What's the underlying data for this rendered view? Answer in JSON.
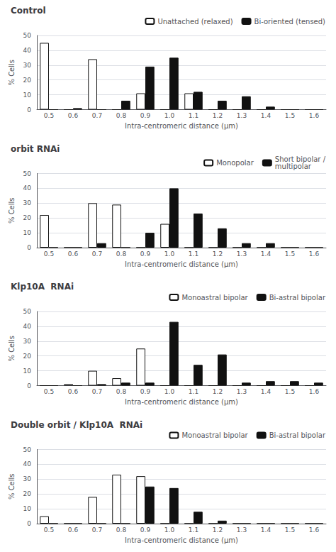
{
  "chart_data": [
    {
      "type": "bar",
      "title": "Control",
      "categories": [
        "0.5",
        "0.6",
        "0.7",
        "0.8",
        "0.9",
        "1.0",
        "1.1",
        "1.2",
        "1.3",
        "1.4",
        "1.5",
        "1.6"
      ],
      "series": [
        {
          "name": "Unattached (relaxed)",
          "color": "#ffffff",
          "values": [
            45,
            0,
            34,
            0,
            11,
            0,
            11,
            0,
            0,
            0,
            0,
            0
          ]
        },
        {
          "name": "Bi-oriented (tensed)",
          "color": "#111111",
          "values": [
            0,
            1,
            0,
            6,
            29,
            35,
            12,
            6,
            9,
            2,
            0,
            0
          ]
        }
      ],
      "xlabel": "Intra-centromeric distance (μm)",
      "ylabel": "% Cells",
      "ylim": [
        0,
        50
      ],
      "yticks": [
        0,
        10,
        20,
        30,
        40,
        50
      ],
      "grid": true,
      "legend": "upper right"
    },
    {
      "type": "bar",
      "title": "orbit RNAi",
      "categories": [
        "0.5",
        "0.6",
        "0.7",
        "0.8",
        "0.9",
        "1.0",
        "1.1",
        "1.2",
        "1.3",
        "1.4",
        "1.5",
        "1.6"
      ],
      "series": [
        {
          "name": "Monopolar",
          "color": "#ffffff",
          "values": [
            22,
            0,
            30,
            29,
            0,
            16,
            0,
            0,
            0,
            0,
            0,
            0
          ]
        },
        {
          "name": "Short bipolar /\nmultipolar",
          "color": "#111111",
          "values": [
            0,
            0,
            3,
            0,
            10,
            40,
            23,
            13,
            3,
            3,
            0,
            0
          ]
        }
      ],
      "xlabel": "Intra-centromeric distance (μm)",
      "ylabel": "% Cells",
      "ylim": [
        0,
        50
      ],
      "yticks": [
        0,
        10,
        20,
        30,
        40,
        50
      ],
      "grid": true,
      "legend": "upper right"
    },
    {
      "type": "bar",
      "title": "Klp10A  RNAi",
      "categories": [
        "0.5",
        "0.6",
        "0.7",
        "0.8",
        "0.9",
        "1.0",
        "1.1",
        "1.2",
        "1.3",
        "1.4",
        "1.5",
        "1.6"
      ],
      "series": [
        {
          "name": "Monoastral bipolar",
          "color": "#ffffff",
          "values": [
            0,
            1,
            10,
            5,
            25,
            0,
            0,
            0,
            0,
            0,
            0,
            0
          ]
        },
        {
          "name": "Bi-astral bipolar",
          "color": "#111111",
          "values": [
            0,
            0,
            1,
            2,
            2,
            43,
            14,
            21,
            2,
            3,
            3,
            2
          ]
        }
      ],
      "xlabel": "Intra-centromeric distance (μm)",
      "ylabel": "% Cells",
      "ylim": [
        0,
        50
      ],
      "yticks": [
        0,
        10,
        20,
        30,
        40,
        50
      ],
      "grid": true,
      "legend": "upper right"
    },
    {
      "type": "bar",
      "title": "Double orbit / Klp10A  RNAi",
      "categories": [
        "0.5",
        "0.6",
        "0.7",
        "0.8",
        "0.9",
        "1.0",
        "1.1",
        "1.2",
        "1.3",
        "1.4",
        "1.5",
        "1.6"
      ],
      "series": [
        {
          "name": "Monoastral bipolar",
          "color": "#ffffff",
          "values": [
            5,
            0,
            18,
            33,
            32,
            0,
            0,
            0,
            0,
            0,
            0,
            0
          ]
        },
        {
          "name": "Bi-astral bipolar",
          "color": "#111111",
          "values": [
            0,
            0,
            0,
            0,
            25,
            24,
            8,
            2,
            0,
            0,
            0,
            0
          ]
        }
      ],
      "xlabel": "Intra-centromeric distance (μm)",
      "ylabel": "% Cells",
      "ylim": [
        0,
        50
      ],
      "yticks": [
        0,
        10,
        20,
        30,
        40,
        50
      ],
      "grid": true,
      "legend": "upper right"
    }
  ]
}
